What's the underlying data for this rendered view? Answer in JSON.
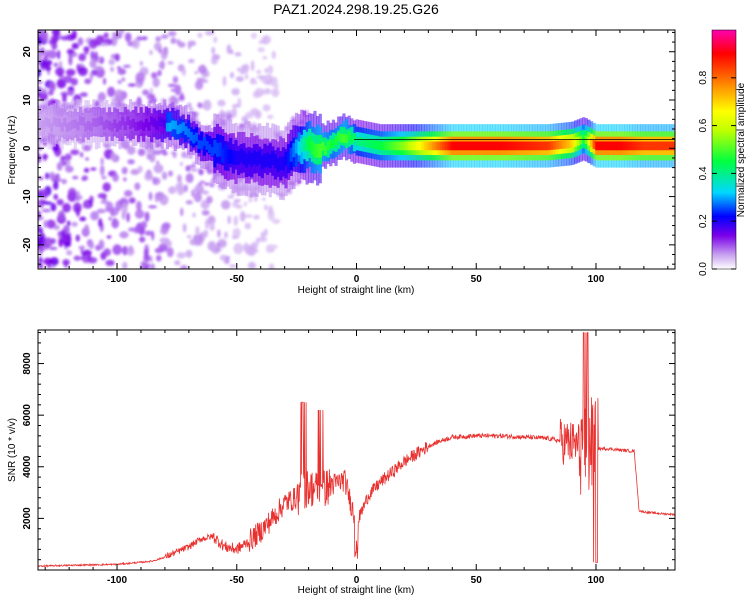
{
  "chart_data": [
    {
      "type": "heatmap",
      "title": "PAZ1.2024.298.19.25.G26",
      "xlabel": "Height of straight line (km)",
      "ylabel": "Frequency (Hz)",
      "xlim": [
        -133,
        133
      ],
      "ylim": [
        -25,
        24.5
      ],
      "xticks": [
        -100,
        -50,
        0,
        50,
        100
      ],
      "yticks": [
        -20,
        -10,
        0,
        10,
        20
      ],
      "colorbar": {
        "label": "Normalized spectral amplitude",
        "range": [
          0.0,
          1.0
        ],
        "ticks": [
          0.0,
          0.2,
          0.4,
          0.6,
          0.8
        ],
        "tick_labels": [
          "0.0",
          "0.2",
          "0.4",
          "0.6",
          "0.8"
        ],
        "colormap": [
          "#ffffff",
          "#c8a0f0",
          "#7a00e8",
          "#0000ff",
          "#00d8ff",
          "#00ff40",
          "#c0ff00",
          "#ffff00",
          "#ff8000",
          "#ff0000",
          "#ff00b0"
        ]
      },
      "ridge": {
        "x": [
          -133,
          -110,
          -95,
          -85,
          -78,
          -72,
          -65,
          -58,
          -50,
          -40,
          -30,
          -25,
          -20,
          -15,
          -10,
          -5,
          0,
          10,
          20,
          40,
          60,
          80,
          90,
          95,
          100,
          110,
          120,
          133
        ],
        "freq": [
          5,
          5,
          5,
          5,
          5,
          4,
          1,
          -0.5,
          -2,
          -2.5,
          -3,
          0,
          0.5,
          0,
          1,
          2.5,
          1.5,
          0.5,
          0.5,
          0.5,
          0.5,
          0.5,
          1,
          2,
          0.5,
          0.5,
          0.5,
          0.5
        ],
        "amplitude": [
          0.1,
          0.15,
          0.2,
          0.25,
          0.3,
          0.28,
          0.25,
          0.25,
          0.2,
          0.2,
          0.2,
          0.3,
          0.45,
          0.5,
          0.45,
          0.5,
          0.4,
          0.45,
          0.55,
          0.9,
          0.9,
          0.85,
          0.7,
          0.45,
          0.9,
          0.9,
          0.85,
          0.85
        ]
      }
    },
    {
      "type": "line",
      "xlabel": "Height of straight line (km)",
      "ylabel": "SNR (10 * v/v)",
      "xlim": [
        -133,
        133
      ],
      "ylim": [
        0,
        9300
      ],
      "xticks": [
        -100,
        -50,
        0,
        50,
        100
      ],
      "yticks": [
        2000,
        4000,
        6000,
        8000
      ],
      "color": "#e8312f",
      "series": [
        {
          "x": [
            -133,
            -120,
            -100,
            -90,
            -85,
            -80,
            -75,
            -70,
            -65,
            -60,
            -55,
            -50,
            -45,
            -40,
            -35,
            -30,
            -25,
            -20,
            -15,
            -10,
            -5,
            0,
            5,
            10,
            15,
            20,
            25,
            30,
            35,
            40,
            50,
            60,
            70,
            80,
            85,
            90,
            95,
            97,
            100,
            105,
            110,
            116,
            118,
            120,
            125,
            133
          ],
          "y": [
            150,
            180,
            220,
            300,
            350,
            500,
            700,
            900,
            1200,
            1300,
            900,
            800,
            1100,
            1500,
            2000,
            2600,
            2800,
            3200,
            3100,
            3300,
            3500,
            1800,
            2900,
            3400,
            3800,
            4200,
            4500,
            4800,
            5000,
            5150,
            5200,
            5200,
            5150,
            5100,
            5000,
            4900,
            4800,
            4750,
            4700,
            4700,
            4650,
            4600,
            2300,
            2250,
            2200,
            2150
          ]
        }
      ]
    }
  ]
}
